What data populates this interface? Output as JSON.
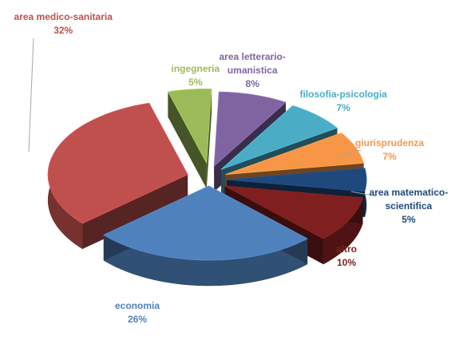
{
  "chart_data": {
    "type": "pie",
    "style": "3d-exploded",
    "legend": "none",
    "slices": [
      {
        "name": "area medico-sanitaria",
        "name_lines": [
          "area medico-sanitaria"
        ],
        "value": 32,
        "value_label": "32%",
        "color": "#c0504d"
      },
      {
        "name": "ingegneria",
        "name_lines": [
          "ingegneria"
        ],
        "value": 5,
        "value_label": "5%",
        "color": "#9bbb59"
      },
      {
        "name": "area letterario-umanistica",
        "name_lines": [
          "area letterario-",
          "umanistica"
        ],
        "value": 8,
        "value_label": "8%",
        "color": "#8064a2"
      },
      {
        "name": "filosofia-psicologia",
        "name_lines": [
          "filosofia-psicologia"
        ],
        "value": 7,
        "value_label": "7%",
        "color": "#4bacc6"
      },
      {
        "name": "giurisprudenza",
        "name_lines": [
          "giurisprudenza"
        ],
        "value": 7,
        "value_label": "7%",
        "color": "#f79646"
      },
      {
        "name": "area matematico-scientifica",
        "name_lines": [
          "area matematico-",
          "scientifica"
        ],
        "value": 5,
        "value_label": "5%",
        "color": "#1f497d"
      },
      {
        "name": "altro",
        "name_lines": [
          "altro"
        ],
        "value": 10,
        "value_label": "10%",
        "color": "#7f1f1f"
      },
      {
        "name": "economia",
        "name_lines": [
          "economia"
        ],
        "value": 26,
        "value_label": "26%",
        "color": "#4f81bd"
      }
    ]
  }
}
